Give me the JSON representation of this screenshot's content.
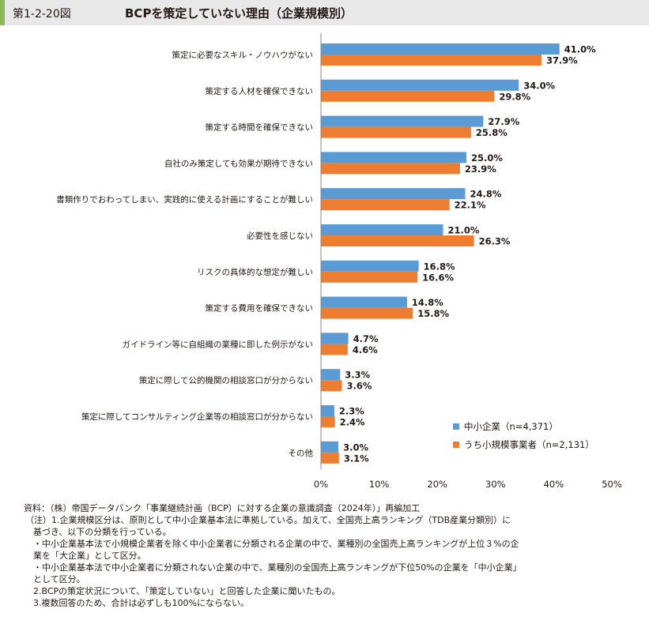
{
  "header": {
    "figure_label": "第1-2-20図",
    "title": "BCPを策定していない理由（企業規模別）",
    "accent_color": "#8cb85c",
    "background_color": "#e8e8e8"
  },
  "chart_data": {
    "type": "bar",
    "orientation": "horizontal",
    "categories": [
      "策定に必要なスキル・ノウハウがない",
      "策定する人材を確保できない",
      "策定する時間を確保できない",
      "自社のみ策定しても効果が期待できない",
      "書類作りでおわってしまい、実践的に使える計画にすることが難しい",
      "必要性を感じない",
      "リスクの具体的な想定が難しい",
      "策定する費用を確保できない",
      "ガイドライン等に自組織の業種に即した例示がない",
      "策定に際して公的機関の相談窓口が分からない",
      "策定に際してコンサルティング企業等の相談窓口が分からない",
      "その他"
    ],
    "series": [
      {
        "name": "中小企業（n=4,371）",
        "color": "#5b9bd5",
        "values": [
          41.0,
          34.0,
          27.9,
          25.0,
          24.8,
          21.0,
          16.8,
          14.8,
          4.7,
          3.3,
          2.3,
          3.0
        ],
        "labels": [
          "41.0%",
          "34.0%",
          "27.9%",
          "25.0%",
          "24.8%",
          "21.0%",
          "16.8%",
          "14.8%",
          "4.7%",
          "3.3%",
          "2.3%",
          "3.0%"
        ]
      },
      {
        "name": "うち小規模事業者（n=2,131）",
        "color": "#ed7d31",
        "values": [
          37.9,
          29.8,
          25.8,
          23.9,
          22.1,
          26.3,
          16.6,
          15.8,
          4.6,
          3.6,
          2.4,
          3.1
        ],
        "labels": [
          "37.9%",
          "29.8%",
          "25.8%",
          "23.9%",
          "22.1%",
          "26.3%",
          "16.6%",
          "15.8%",
          "4.6%",
          "3.6%",
          "2.4%",
          "3.1%"
        ]
      }
    ],
    "x_ticks": [
      "0%",
      "10%",
      "20%",
      "30%",
      "40%",
      "50%"
    ],
    "xlim": [
      0,
      50
    ],
    "grid": false,
    "legend_position": "bottom-right"
  },
  "notes": [
    "資料：（株）帝国データバンク「事業継続計画（BCP）に対する企業の意識調査（2024年）」再編加工",
    "（注）1.企業規模区分は、原則として中小企業基本法に準拠している。加えて、全国売上高ランキング（TDB産業分類別）に",
    "基づき、以下の分類を行っている。",
    "・中小企業基本法で小規模企業者を除く中小企業者に分類される企業の中で、業種別の全国売上高ランキングが上位３%の企",
    "業を「大企業」として区分。",
    "・中小企業基本法で中小企業者に分類されない企業の中で、業種別の全国売上高ランキングが下位50%の企業を「中小企業」",
    "として区分。",
    "2.BCPの策定状況について、「策定していない」と回答した企業に聞いたもの。",
    "3.複数回答のため、合計は必ずしも100%にならない。"
  ]
}
